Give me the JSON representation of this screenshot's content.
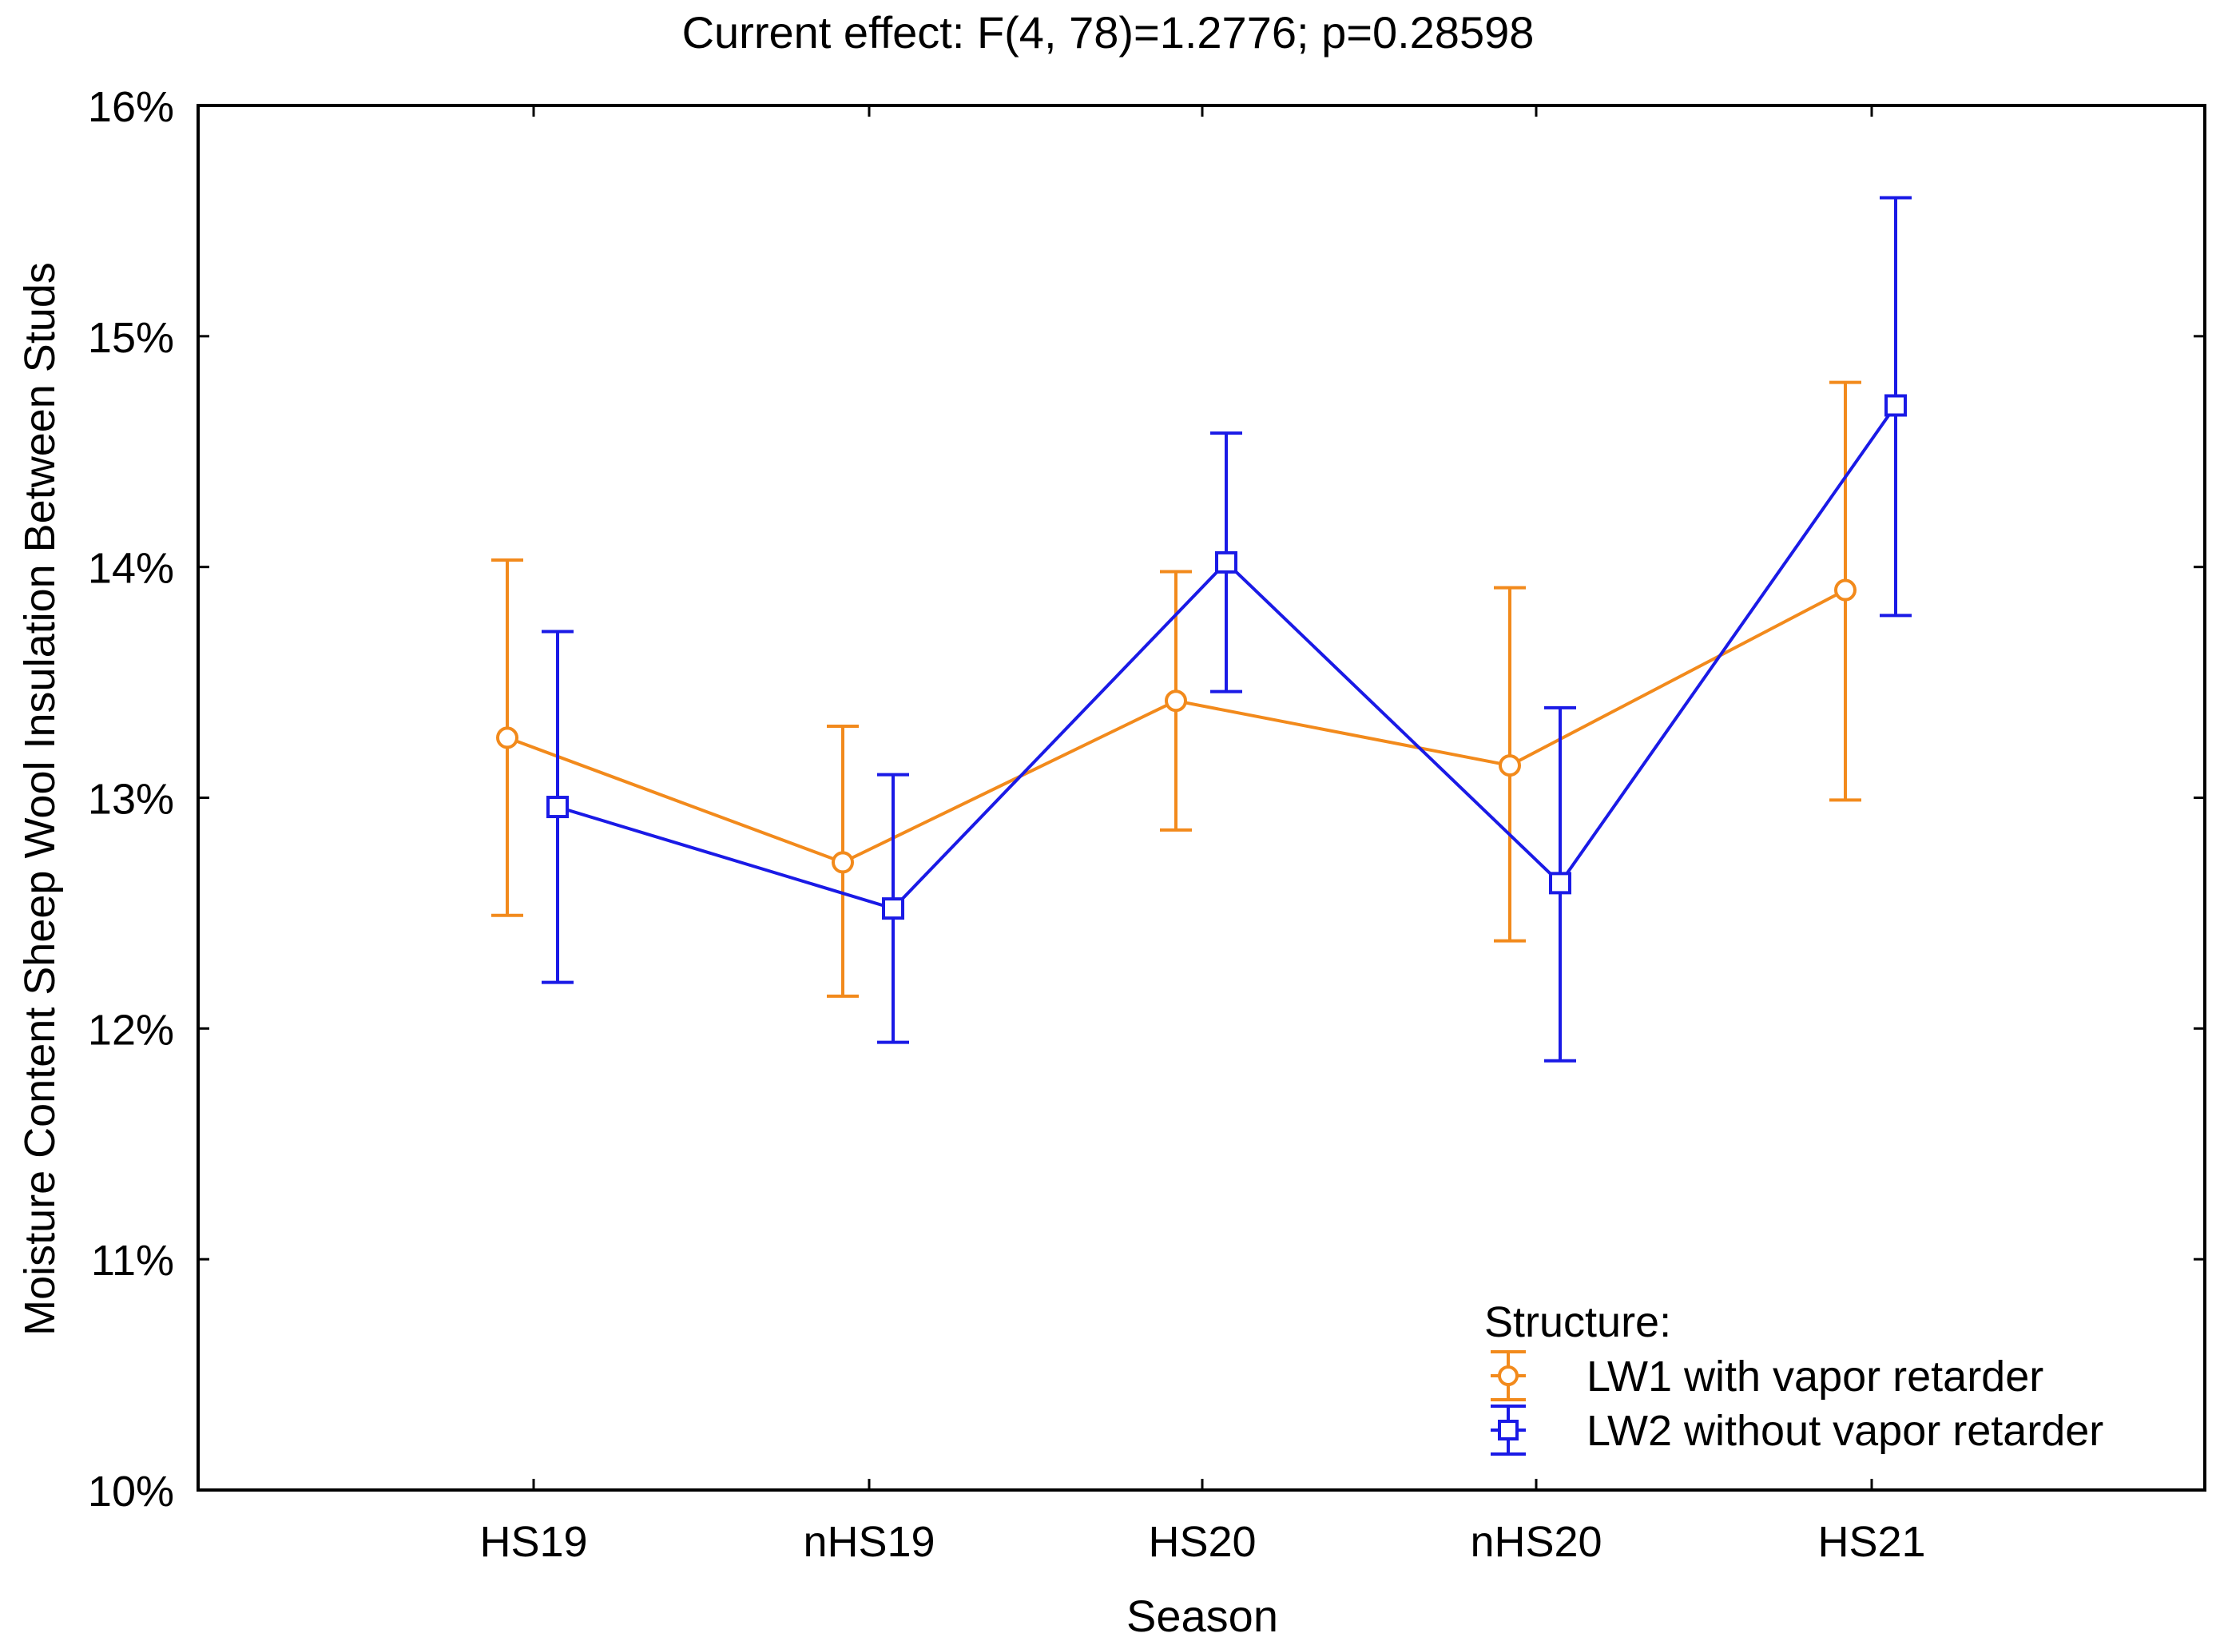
{
  "chart_data": {
    "type": "line",
    "title": "Current effect: F(4, 78)=1.2776; p=0.28598",
    "xlabel": "Season",
    "ylabel": "Moisture Content Sheep Wool Insulation Between Studs",
    "categories": [
      "HS19",
      "nHS19",
      "HS20",
      "nHS20",
      "HS21"
    ],
    "yticks": [
      "10%",
      "11%",
      "12%",
      "13%",
      "14%",
      "15%",
      "16%"
    ],
    "ylim": [
      10,
      16
    ],
    "grid": false,
    "legend_title": "Structure:",
    "legend_position": "bottom-right",
    "series": [
      {
        "name": "LW1 with vapor retarder",
        "color": "#f28a1c",
        "marker": "circle",
        "values": [
          13.26,
          12.72,
          13.42,
          13.14,
          13.9
        ],
        "lower": [
          12.49,
          12.14,
          12.86,
          12.38,
          12.99
        ],
        "upper": [
          14.03,
          13.31,
          13.98,
          13.91,
          14.8
        ]
      },
      {
        "name": "LW2 without vapor retarder",
        "color": "#1a1ae6",
        "marker": "square",
        "values": [
          12.96,
          12.52,
          14.02,
          12.63,
          14.7
        ],
        "lower": [
          12.2,
          11.94,
          13.46,
          11.86,
          13.79
        ],
        "upper": [
          13.72,
          13.1,
          14.58,
          13.39,
          15.6
        ]
      }
    ]
  }
}
